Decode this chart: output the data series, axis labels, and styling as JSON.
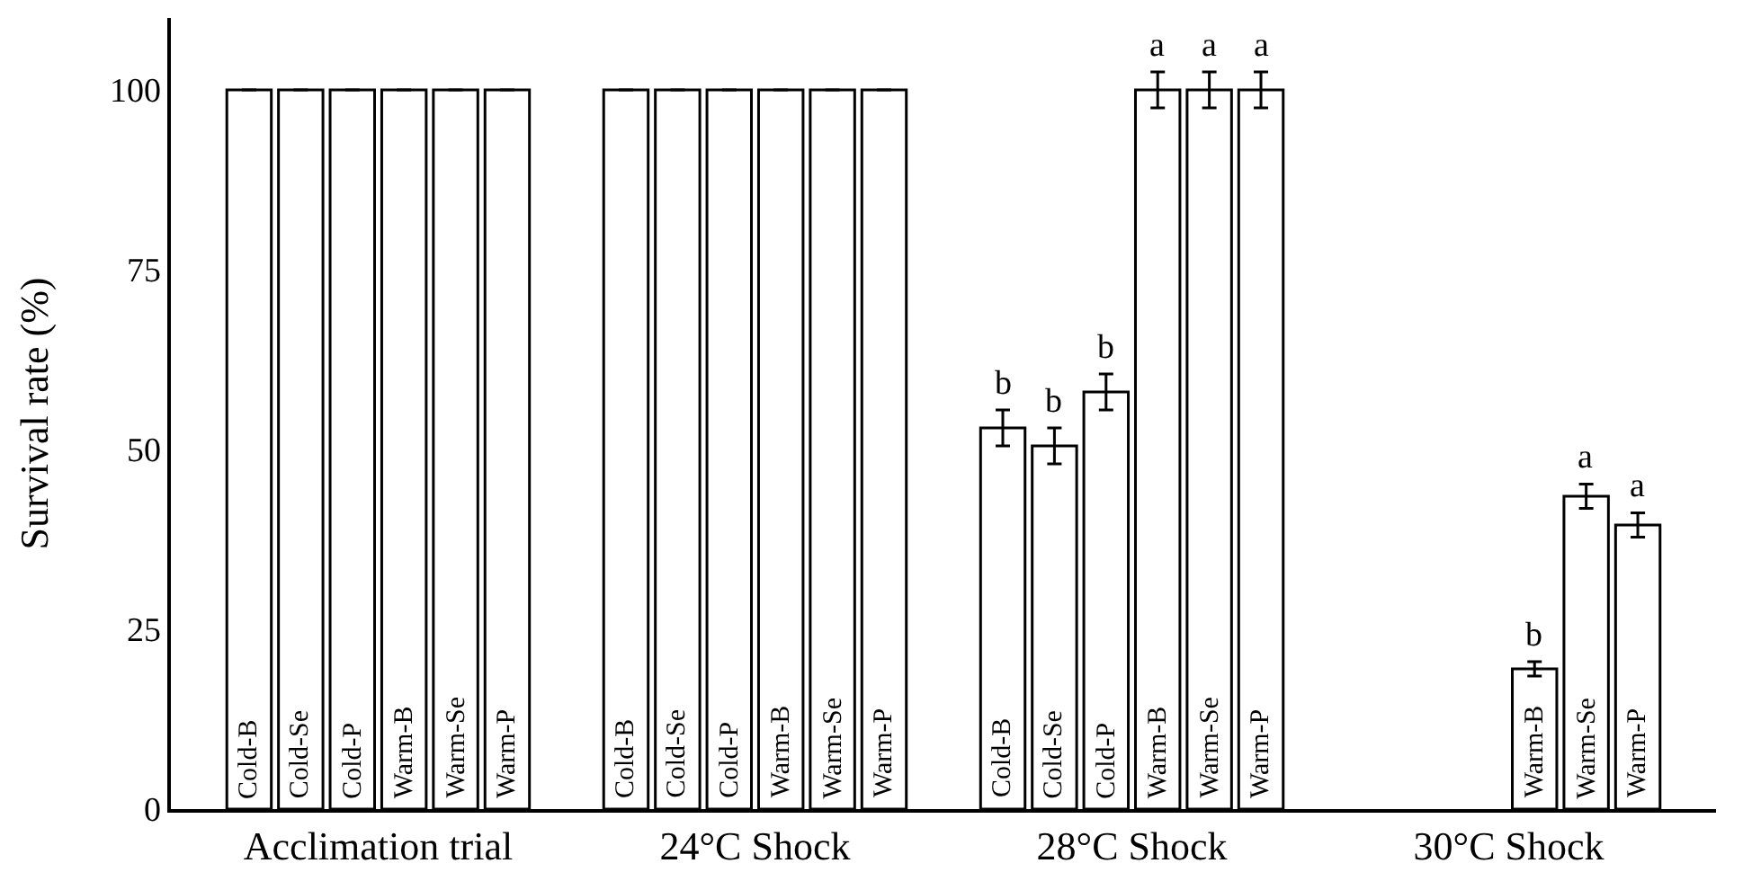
{
  "chart_data": {
    "type": "bar",
    "ylabel": "Survival rate (%)",
    "categories": [
      "Acclimation trial",
      "24°C Shock",
      "28°C Shock",
      "30°C Shock"
    ],
    "series": [
      {
        "name": "Cold-B",
        "color": "#ffffff",
        "values": [
          100,
          100,
          53,
          null
        ],
        "errors": [
          null,
          null,
          2.5,
          null
        ],
        "value_labels": [
          null,
          null,
          "b",
          null
        ]
      },
      {
        "name": "Cold-Se",
        "color": "#ffffff",
        "values": [
          100,
          100,
          50.5,
          null
        ],
        "errors": [
          null,
          null,
          2.5,
          null
        ],
        "value_labels": [
          null,
          null,
          "b",
          null
        ]
      },
      {
        "name": "Cold-P",
        "color": "#ffffff",
        "values": [
          100,
          100,
          58,
          null
        ],
        "errors": [
          null,
          null,
          2.5,
          null
        ],
        "value_labels": [
          null,
          null,
          "b",
          null
        ]
      },
      {
        "name": "Warm-B",
        "color": "#ffffff",
        "values": [
          100,
          100,
          100,
          19.5
        ],
        "errors": [
          null,
          null,
          2.5,
          1
        ],
        "value_labels": [
          null,
          null,
          "a",
          "b"
        ]
      },
      {
        "name": "Warm-Se",
        "color": "#ffffff",
        "values": [
          100,
          100,
          100,
          43.5
        ],
        "errors": [
          null,
          null,
          2.5,
          1.7
        ],
        "value_labels": [
          null,
          null,
          "a",
          "a"
        ]
      },
      {
        "name": "Warm-P",
        "color": "#ffffff",
        "values": [
          100,
          100,
          100,
          39.5
        ],
        "errors": [
          null,
          null,
          2.5,
          1.7
        ],
        "value_labels": [
          null,
          null,
          "a",
          "a"
        ]
      }
    ],
    "ylim": [
      0,
      110
    ],
    "yticks": [
      0,
      25,
      50,
      75,
      100
    ],
    "grid": false,
    "legend": false
  }
}
